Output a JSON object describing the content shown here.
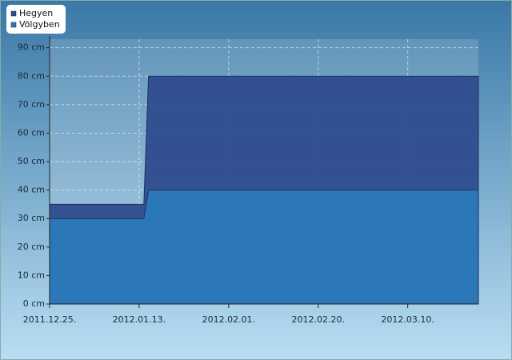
{
  "chart_data": {
    "type": "area",
    "x": [
      "2011-12-25",
      "2012-01-14",
      "2012-01-15",
      "2012-03-25"
    ],
    "series": [
      {
        "name": "Hegyen",
        "color": "#2e4c8e",
        "values": [
          35,
          35,
          80,
          80
        ]
      },
      {
        "name": "Völgyben",
        "color": "#2b79b9",
        "values": [
          30,
          30,
          40,
          40
        ]
      }
    ],
    "xlim": [
      "2011-12-25",
      "2012-03-25"
    ],
    "xticks": [
      {
        "value": "2011-12-25",
        "label": "2011.12.25."
      },
      {
        "value": "2012-01-13",
        "label": "2012.01.13."
      },
      {
        "value": "2012-02-01",
        "label": "2012.02.01."
      },
      {
        "value": "2012-02-20",
        "label": "2012.02.20."
      },
      {
        "value": "2012-03-10",
        "label": "2012.03.10."
      }
    ],
    "ylim": [
      0,
      93
    ],
    "yticks": [
      {
        "value": 0,
        "label": "0 cm"
      },
      {
        "value": 10,
        "label": "10 cm"
      },
      {
        "value": 20,
        "label": "20 cm"
      },
      {
        "value": 30,
        "label": "30 cm"
      },
      {
        "value": 40,
        "label": "40 cm"
      },
      {
        "value": 50,
        "label": "50 cm"
      },
      {
        "value": 60,
        "label": "60 cm"
      },
      {
        "value": 70,
        "label": "70 cm"
      },
      {
        "value": 80,
        "label": "80 cm"
      },
      {
        "value": 90,
        "label": "90 cm"
      }
    ],
    "grid": true
  }
}
